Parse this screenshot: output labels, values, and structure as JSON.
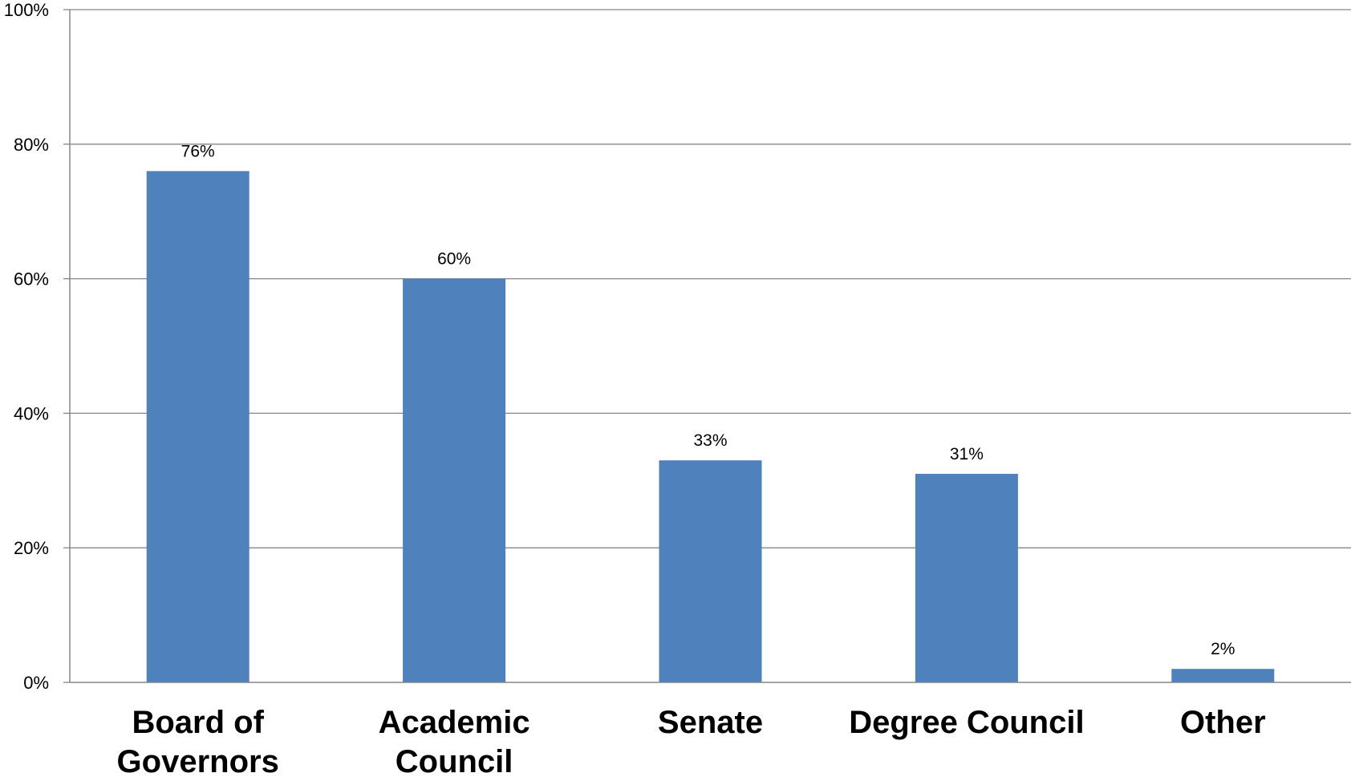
{
  "chart_data": {
    "type": "bar",
    "categories": [
      [
        "Board of",
        "Governors"
      ],
      [
        "Academic",
        "Council"
      ],
      [
        "Senate"
      ],
      [
        "Degree Council"
      ],
      [
        "Other"
      ]
    ],
    "values": [
      76,
      60,
      33,
      31,
      2
    ],
    "data_labels": [
      "76%",
      "60%",
      "33%",
      "31%",
      "2%"
    ],
    "ylim": [
      0,
      100
    ],
    "yticks": [
      0,
      20,
      40,
      60,
      80,
      100
    ],
    "ytick_labels": [
      "0%",
      "20%",
      "40%",
      "60%",
      "80%",
      "100%"
    ],
    "grid": true,
    "legend": "none",
    "bar_color": "#4F81BD",
    "grid_color": "#868686"
  }
}
